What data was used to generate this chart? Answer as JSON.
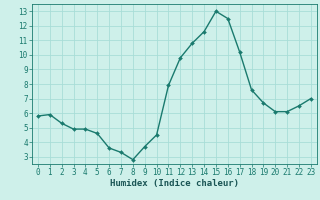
{
  "x": [
    0,
    1,
    2,
    3,
    4,
    5,
    6,
    7,
    8,
    9,
    10,
    11,
    12,
    13,
    14,
    15,
    16,
    17,
    18,
    19,
    20,
    21,
    22,
    23
  ],
  "y": [
    5.8,
    5.9,
    5.3,
    4.9,
    4.9,
    4.6,
    3.6,
    3.3,
    2.8,
    3.7,
    4.5,
    7.9,
    9.8,
    10.8,
    11.6,
    13.0,
    12.5,
    10.2,
    7.6,
    6.7,
    6.1,
    6.1,
    6.5,
    7.0
  ],
  "line_color": "#1a7a6e",
  "marker": "D",
  "marker_size": 2.0,
  "bg_color": "#cef0ea",
  "grid_color": "#a8ddd7",
  "xlabel": "Humidex (Indice chaleur)",
  "xlim": [
    -0.5,
    23.5
  ],
  "ylim": [
    2.5,
    13.5
  ],
  "xticks": [
    0,
    1,
    2,
    3,
    4,
    5,
    6,
    7,
    8,
    9,
    10,
    11,
    12,
    13,
    14,
    15,
    16,
    17,
    18,
    19,
    20,
    21,
    22,
    23
  ],
  "yticks": [
    3,
    4,
    5,
    6,
    7,
    8,
    9,
    10,
    11,
    12,
    13
  ],
  "tick_label_fontsize": 5.5,
  "xlabel_fontsize": 6.5,
  "line_width": 1.0,
  "tick_color": "#1a7a6e",
  "xlabel_color": "#1a5555"
}
